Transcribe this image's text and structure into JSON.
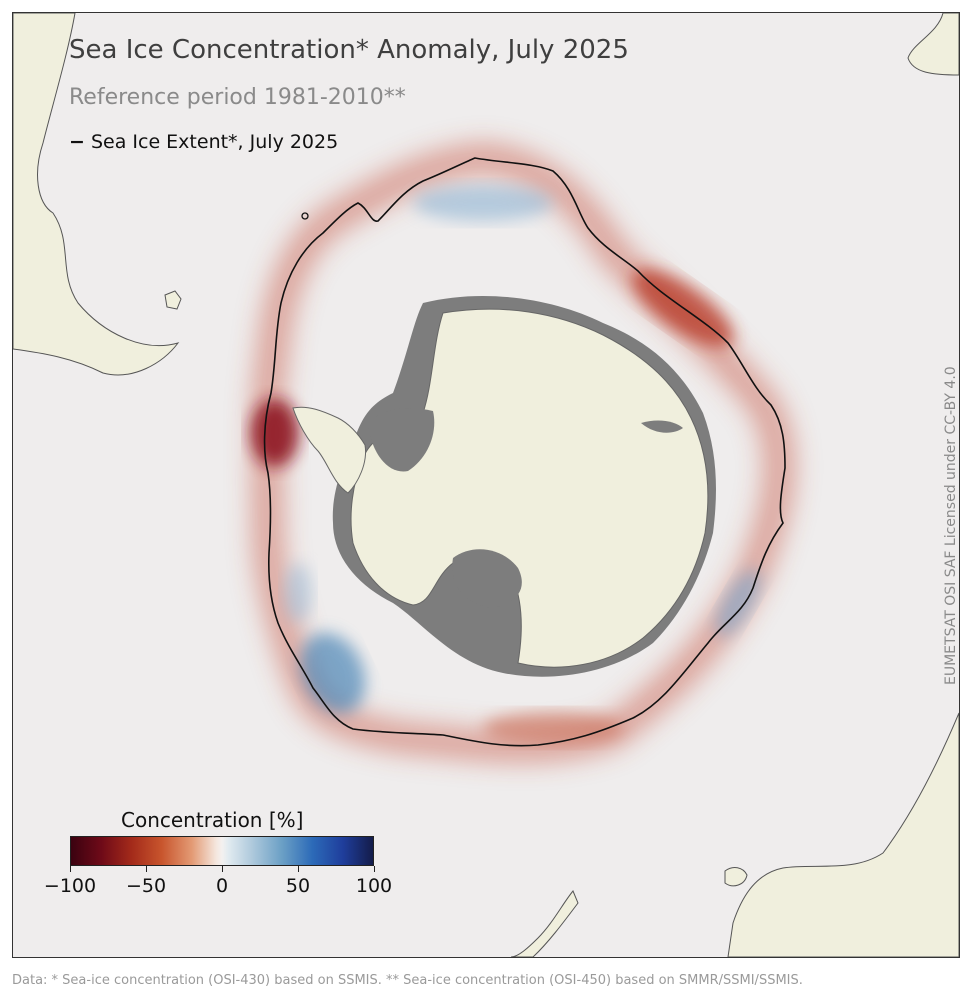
{
  "map": {
    "title": "Sea Ice Concentration* Anomaly, July 2025",
    "subtitle": "Reference period 1981-2010**",
    "legend_dash": "−",
    "legend_label": "Sea Ice Extent*, July 2025",
    "credit": "EUMETSAT OSI SAF Licensed under CC-BY 4.0",
    "colors": {
      "land": "#f0efdd",
      "ocean": "#efeded",
      "ice_shelf": "#7d7d7d",
      "negative_anomaly": "#b33222",
      "positive_anomaly": "#3f7fb3"
    }
  },
  "colorbar": {
    "title": "Concentration [%]",
    "min": -100,
    "max": 100,
    "ticks": [
      "−100",
      "−50",
      "0",
      "50",
      "100"
    ],
    "tick_values": [
      -100,
      -50,
      0,
      50,
      100
    ]
  },
  "footnote": "Data: * Sea-ice concentration (OSI-430) based on SSMIS. ** Sea-ice concentration (OSI-450) based on SMMR/SSMI/SSMIS."
}
